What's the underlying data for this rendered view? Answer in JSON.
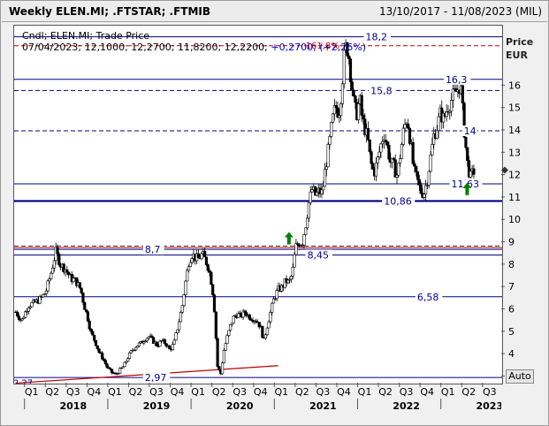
{
  "header": {
    "title": "Weekly ELEN.MI; .FTSTAR; .FTMIB",
    "date_range": "13/10/2017 - 11/08/2023 (MIL)"
  },
  "legend": {
    "line1": "Cndl; ELEN.MI; Trade Price",
    "line2_date": "07/04/2023;",
    "line2_values": "12,1000; 12,2700; 11,8200; 12,2200;",
    "line2_change": "+0,2700; (+2,26%)"
  },
  "unit": {
    "price": "Price",
    "currency": "EUR"
  },
  "auto_button": "Auto",
  "colors": {
    "candle": "#000000",
    "navy_line": "#000080",
    "red_line": "#c00000",
    "arrow": "#008000",
    "label": "#00008b"
  },
  "chart_data": {
    "type": "candlestick",
    "title": "",
    "ylim": [
      2.7,
      18.7
    ],
    "y_ticks": [
      "3",
      "4",
      "5",
      "6",
      "7",
      "8",
      "9",
      "10",
      "11",
      "12",
      "13",
      "14",
      "15",
      "16"
    ],
    "x_quarter_labels": [
      "Q1",
      "Q2",
      "Q3",
      "Q4",
      "Q1",
      "Q2",
      "Q3",
      "Q4",
      "Q1",
      "Q2",
      "Q3",
      "Q4",
      "Q1",
      "Q2",
      "Q3",
      "Q4",
      "Q1",
      "Q2",
      "Q3",
      "Q4",
      "Q1",
      "Q2",
      "Q3",
      "Q4",
      "Q1",
      "Q2",
      "Q3"
    ],
    "x_years": [
      "2018",
      "2019",
      "2020",
      "2021",
      "2022",
      "2023"
    ],
    "xlim": [
      2017.78,
      2023.64
    ],
    "horizontal_levels": [
      {
        "value": 18.2,
        "label": "18,2",
        "style": "solid"
      },
      {
        "value": 16.3,
        "label": "16,3",
        "style": "solid"
      },
      {
        "value": 15.8,
        "label": "15,8",
        "style": "dashed"
      },
      {
        "value": 14.0,
        "label": "14",
        "style": "dashed"
      },
      {
        "value": 11.63,
        "label": "11,63",
        "style": "solid"
      },
      {
        "value": 10.86,
        "label": "10,86",
        "style": "thick"
      },
      {
        "value": 8.7,
        "label": "8,7",
        "style": "solid"
      },
      {
        "value": 8.45,
        "label": "8,45",
        "style": "solid"
      },
      {
        "value": 6.58,
        "label": "6,58",
        "style": "solid"
      },
      {
        "value": 2.97,
        "label": "2,97",
        "style": "solid"
      }
    ],
    "red_levels": [
      {
        "value": 17.8,
        "label": "161,8%",
        "style": "dashed"
      },
      {
        "value": 8.78,
        "label": "",
        "style": "solid"
      }
    ],
    "dashed_extra_levels": [
      8.85
    ],
    "trendline": {
      "from": [
        2017.8,
        2.72
      ],
      "to": [
        2020.95,
        3.5
      ],
      "label": "2,27"
    },
    "up_arrows": [
      {
        "x": 2021.08,
        "y": 9.2
      },
      {
        "x": 2023.22,
        "y": 11.4
      }
    ],
    "current_marker": 12.2,
    "series": [
      {
        "name": "ELEN.MI",
        "points": [
          [
            2017.8,
            5.9
          ],
          [
            2017.87,
            5.5
          ],
          [
            2017.95,
            6.2
          ],
          [
            2018.02,
            6.3
          ],
          [
            2018.1,
            6.5
          ],
          [
            2018.16,
            6.8
          ],
          [
            2018.22,
            7.6
          ],
          [
            2018.28,
            8.6
          ],
          [
            2018.34,
            8.0
          ],
          [
            2018.4,
            7.8
          ],
          [
            2018.46,
            7.4
          ],
          [
            2018.52,
            7.3
          ],
          [
            2018.58,
            6.9
          ],
          [
            2018.62,
            6.2
          ],
          [
            2018.66,
            5.7
          ],
          [
            2018.7,
            5.0
          ],
          [
            2018.75,
            4.6
          ],
          [
            2018.8,
            4.1
          ],
          [
            2018.85,
            3.8
          ],
          [
            2018.9,
            3.4
          ],
          [
            2018.95,
            3.2
          ],
          [
            2019.0,
            3.1
          ],
          [
            2019.05,
            3.3
          ],
          [
            2019.1,
            3.5
          ],
          [
            2019.15,
            3.9
          ],
          [
            2019.2,
            4.2
          ],
          [
            2019.25,
            4.4
          ],
          [
            2019.3,
            4.5
          ],
          [
            2019.35,
            4.7
          ],
          [
            2019.4,
            4.8
          ],
          [
            2019.45,
            4.6
          ],
          [
            2019.5,
            4.4
          ],
          [
            2019.55,
            4.6
          ],
          [
            2019.6,
            4.5
          ],
          [
            2019.65,
            4.2
          ],
          [
            2019.7,
            4.5
          ],
          [
            2019.75,
            5.3
          ],
          [
            2019.8,
            6.2
          ],
          [
            2019.84,
            7.3
          ],
          [
            2019.88,
            8.2
          ],
          [
            2019.92,
            8.5
          ],
          [
            2019.96,
            8.3
          ],
          [
            2020.0,
            8.3
          ],
          [
            2020.04,
            8.5
          ],
          [
            2020.08,
            8.2
          ],
          [
            2020.12,
            7.8
          ],
          [
            2020.16,
            7.0
          ],
          [
            2020.19,
            5.8
          ],
          [
            2020.22,
            3.5
          ],
          [
            2020.26,
            3.1
          ],
          [
            2020.3,
            4.2
          ],
          [
            2020.34,
            4.8
          ],
          [
            2020.38,
            5.3
          ],
          [
            2020.42,
            5.7
          ],
          [
            2020.46,
            5.8
          ],
          [
            2020.5,
            5.7
          ],
          [
            2020.55,
            5.9
          ],
          [
            2020.6,
            5.7
          ],
          [
            2020.65,
            5.6
          ],
          [
            2020.7,
            5.5
          ],
          [
            2020.74,
            5.2
          ],
          [
            2020.78,
            4.6
          ],
          [
            2020.82,
            5.3
          ],
          [
            2020.86,
            5.9
          ],
          [
            2020.9,
            6.5
          ],
          [
            2020.95,
            6.9
          ],
          [
            2021.0,
            7.0
          ],
          [
            2021.04,
            7.3
          ],
          [
            2021.08,
            7.2
          ],
          [
            2021.12,
            7.6
          ],
          [
            2021.16,
            8.8
          ],
          [
            2021.2,
            9.0
          ],
          [
            2021.24,
            9.0
          ],
          [
            2021.28,
            9.8
          ],
          [
            2021.32,
            10.8
          ],
          [
            2021.36,
            11.4
          ],
          [
            2021.4,
            11.1
          ],
          [
            2021.44,
            11.3
          ],
          [
            2021.48,
            11.2
          ],
          [
            2021.52,
            12.4
          ],
          [
            2021.56,
            13.3
          ],
          [
            2021.6,
            14.4
          ],
          [
            2021.64,
            15.1
          ],
          [
            2021.68,
            14.8
          ],
          [
            2021.71,
            15.8
          ],
          [
            2021.74,
            17.2
          ],
          [
            2021.77,
            17.9
          ],
          [
            2021.8,
            17.3
          ],
          [
            2021.83,
            16.2
          ],
          [
            2021.86,
            15.2
          ],
          [
            2021.89,
            14.7
          ],
          [
            2021.93,
            15.4
          ],
          [
            2021.96,
            14.5
          ],
          [
            2022.0,
            14.0
          ],
          [
            2022.03,
            13.5
          ],
          [
            2022.06,
            12.6
          ],
          [
            2022.1,
            12.1
          ],
          [
            2022.14,
            12.6
          ],
          [
            2022.18,
            13.3
          ],
          [
            2022.22,
            13.9
          ],
          [
            2022.26,
            13.3
          ],
          [
            2022.3,
            12.6
          ],
          [
            2022.34,
            12.4
          ],
          [
            2022.38,
            12.0
          ],
          [
            2022.42,
            13.0
          ],
          [
            2022.46,
            14.1
          ],
          [
            2022.5,
            14.6
          ],
          [
            2022.54,
            13.5
          ],
          [
            2022.58,
            12.2
          ],
          [
            2022.62,
            11.8
          ],
          [
            2022.66,
            11.3
          ],
          [
            2022.7,
            11.2
          ],
          [
            2022.74,
            11.8
          ],
          [
            2022.78,
            12.8
          ],
          [
            2022.82,
            13.8
          ],
          [
            2022.86,
            14.2
          ],
          [
            2022.9,
            14.8
          ],
          [
            2022.94,
            14.5
          ],
          [
            2022.98,
            15.0
          ],
          [
            2023.02,
            15.3
          ],
          [
            2023.06,
            15.6
          ],
          [
            2023.1,
            15.8
          ],
          [
            2023.14,
            16.1
          ],
          [
            2023.18,
            14.2
          ],
          [
            2023.22,
            12.6
          ],
          [
            2023.26,
            11.9
          ],
          [
            2023.3,
            12.2
          ]
        ]
      }
    ]
  }
}
